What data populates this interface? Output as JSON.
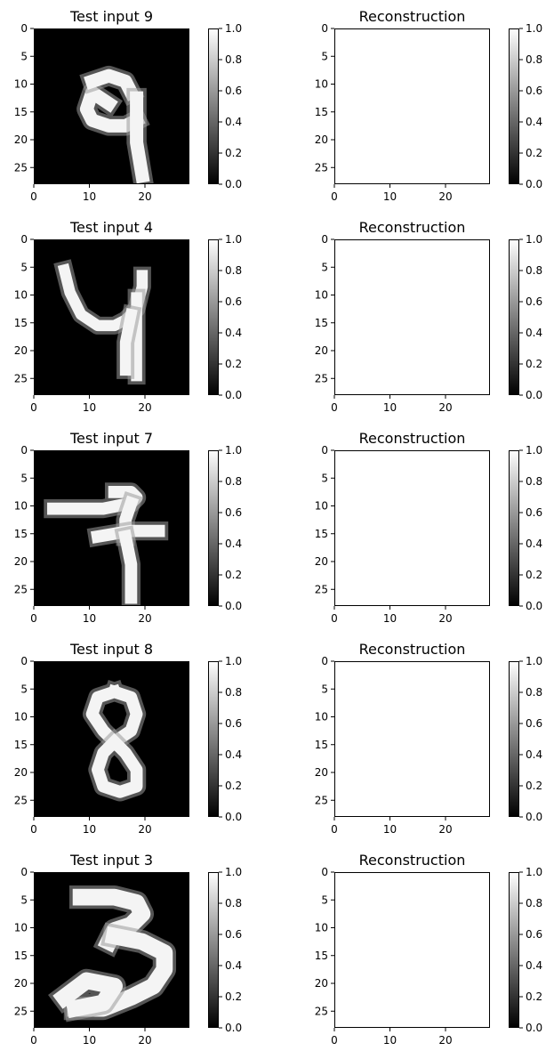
{
  "chart_data": [
    {
      "type": "heatmap",
      "title": "Test input 9",
      "colormap": "gray",
      "xlim": [
        0,
        28
      ],
      "ylim": [
        28,
        0
      ],
      "xticks": [
        "0",
        "10",
        "20"
      ],
      "yticks": [
        "0",
        "5",
        "10",
        "15",
        "20",
        "25"
      ],
      "colorbar": {
        "min": 0.0,
        "max": 1.0,
        "ticks": [
          "0.0",
          "0.2",
          "0.4",
          "0.6",
          "0.8",
          "1.0"
        ]
      },
      "strokes": [
        [
          [
            13,
            13
          ],
          [
            10,
            11
          ],
          [
            9,
            14
          ],
          [
            10,
            16
          ],
          [
            13,
            17
          ],
          [
            16,
            17
          ],
          [
            18,
            16
          ]
        ],
        [
          [
            17,
            11
          ],
          [
            16,
            9
          ],
          [
            13,
            8
          ],
          [
            10,
            9
          ]
        ],
        [
          [
            18,
            12
          ],
          [
            18,
            20
          ],
          [
            19,
            26
          ]
        ]
      ],
      "stroke_width": 2.4
    },
    {
      "type": "heatmap",
      "title": "Reconstruction",
      "colormap": "gray",
      "xlim": [
        0,
        28
      ],
      "ylim": [
        28,
        0
      ],
      "xticks": [
        "0",
        "10",
        "20"
      ],
      "yticks": [
        "0",
        "5",
        "10",
        "15",
        "20",
        "25"
      ],
      "colorbar": {
        "min": 0.0,
        "max": 1.0,
        "ticks": [
          "0.0",
          "0.2",
          "0.4",
          "0.6",
          "0.8",
          "1.0"
        ]
      },
      "fill_value": 1.0
    },
    {
      "type": "heatmap",
      "title": "Test input 4",
      "colormap": "gray",
      "xlim": [
        0,
        28
      ],
      "ylim": [
        28,
        0
      ],
      "xticks": [
        "0",
        "10",
        "20"
      ],
      "yticks": [
        "0",
        "5",
        "10",
        "15",
        "20",
        "25"
      ],
      "colorbar": {
        "min": 0.0,
        "max": 1.0,
        "ticks": [
          "0.0",
          "0.2",
          "0.4",
          "0.6",
          "0.8",
          "1.0"
        ]
      },
      "strokes": [
        [
          [
            5,
            5
          ],
          [
            6,
            9
          ],
          [
            8,
            13
          ],
          [
            11,
            15
          ],
          [
            14,
            15
          ],
          [
            16,
            14
          ],
          [
            18,
            12
          ],
          [
            19,
            8
          ],
          [
            19,
            6
          ]
        ],
        [
          [
            18,
            10
          ],
          [
            18,
            17
          ],
          [
            18,
            24
          ]
        ],
        [
          [
            17,
            13
          ],
          [
            16,
            18
          ],
          [
            16,
            23
          ]
        ]
      ],
      "stroke_width": 2.0
    },
    {
      "type": "heatmap",
      "title": "Reconstruction",
      "colormap": "gray",
      "xlim": [
        0,
        28
      ],
      "ylim": [
        28,
        0
      ],
      "xticks": [
        "0",
        "10",
        "20"
      ],
      "yticks": [
        "0",
        "5",
        "10",
        "15",
        "20",
        "25"
      ],
      "colorbar": {
        "min": 0.0,
        "max": 1.0,
        "ticks": [
          "0.0",
          "0.2",
          "0.4",
          "0.6",
          "0.8",
          "1.0"
        ]
      },
      "fill_value": 1.0
    },
    {
      "type": "heatmap",
      "title": "Test input 7",
      "colormap": "gray",
      "xlim": [
        0,
        28
      ],
      "ylim": [
        28,
        0
      ],
      "xticks": [
        "0",
        "10",
        "20"
      ],
      "yticks": [
        "0",
        "5",
        "10",
        "15",
        "20",
        "25"
      ],
      "colorbar": {
        "min": 0.0,
        "max": 1.0,
        "ticks": [
          "0.0",
          "0.2",
          "0.4",
          "0.6",
          "0.8",
          "1.0"
        ]
      },
      "strokes": [
        [
          [
            3,
            10
          ],
          [
            12,
            10
          ],
          [
            17,
            9
          ],
          [
            18,
            8
          ],
          [
            17,
            7
          ],
          [
            14,
            7
          ]
        ],
        [
          [
            17,
            9
          ],
          [
            16,
            12
          ],
          [
            16,
            15
          ]
        ],
        [
          [
            11,
            15
          ],
          [
            17,
            14
          ],
          [
            22,
            14
          ]
        ],
        [
          [
            16,
            15
          ],
          [
            17,
            20
          ],
          [
            17,
            26
          ]
        ]
      ],
      "stroke_width": 2.2
    },
    {
      "type": "heatmap",
      "title": "Reconstruction",
      "colormap": "gray",
      "xlim": [
        0,
        28
      ],
      "ylim": [
        28,
        0
      ],
      "xticks": [
        "0",
        "10",
        "20"
      ],
      "yticks": [
        "0",
        "5",
        "10",
        "15",
        "20",
        "25"
      ],
      "colorbar": {
        "min": 0.0,
        "max": 1.0,
        "ticks": [
          "0.0",
          "0.2",
          "0.4",
          "0.6",
          "0.8",
          "1.0"
        ]
      },
      "fill_value": 1.0
    },
    {
      "type": "heatmap",
      "title": "Test input 8",
      "colormap": "gray",
      "xlim": [
        0,
        28
      ],
      "ylim": [
        28,
        0
      ],
      "xticks": [
        "0",
        "10",
        "20"
      ],
      "yticks": [
        "0",
        "5",
        "10",
        "15",
        "20",
        "25"
      ],
      "colorbar": {
        "min": 0.0,
        "max": 1.0,
        "ticks": [
          "0.0",
          "0.2",
          "0.4",
          "0.6",
          "0.8",
          "1.0"
        ]
      },
      "strokes": [
        [
          [
            14,
            5
          ],
          [
            11,
            6
          ],
          [
            10,
            9
          ],
          [
            12,
            12
          ],
          [
            14,
            14
          ],
          [
            17,
            12
          ],
          [
            18,
            9
          ],
          [
            17,
            6
          ],
          [
            14,
            5
          ]
        ],
        [
          [
            14,
            14
          ],
          [
            12,
            16
          ],
          [
            11,
            19
          ],
          [
            12,
            22
          ],
          [
            15,
            23
          ],
          [
            18,
            22
          ],
          [
            18,
            19
          ],
          [
            16,
            16
          ],
          [
            14,
            14
          ]
        ]
      ],
      "stroke_width": 2.2
    },
    {
      "type": "heatmap",
      "title": "Reconstruction",
      "colormap": "gray",
      "xlim": [
        0,
        28
      ],
      "ylim": [
        28,
        0
      ],
      "xticks": [
        "0",
        "10",
        "20"
      ],
      "yticks": [
        "0",
        "5",
        "10",
        "15",
        "20",
        "25"
      ],
      "colorbar": {
        "min": 0.0,
        "max": 1.0,
        "ticks": [
          "0.0",
          "0.2",
          "0.4",
          "0.6",
          "0.8",
          "1.0"
        ]
      },
      "fill_value": 1.0
    },
    {
      "type": "heatmap",
      "title": "Test input 3",
      "colormap": "gray",
      "xlim": [
        0,
        28
      ],
      "ylim": [
        28,
        0
      ],
      "xticks": [
        "0",
        "10",
        "20"
      ],
      "yticks": [
        "0",
        "5",
        "10",
        "15",
        "20",
        "25"
      ],
      "colorbar": {
        "min": 0.0,
        "max": 1.0,
        "ticks": [
          "0.0",
          "0.2",
          "0.4",
          "0.6",
          "0.8",
          "1.0"
        ]
      },
      "strokes": [
        [
          [
            8,
            4
          ],
          [
            14,
            4
          ],
          [
            18,
            5
          ],
          [
            19,
            7
          ],
          [
            17,
            9
          ],
          [
            14,
            10
          ],
          [
            13,
            12
          ]
        ],
        [
          [
            14,
            11
          ],
          [
            19,
            12
          ],
          [
            23,
            14
          ],
          [
            23,
            17
          ],
          [
            21,
            20
          ],
          [
            17,
            22
          ],
          [
            12,
            24
          ],
          [
            7,
            24
          ]
        ],
        [
          [
            5,
            22
          ],
          [
            9,
            19
          ],
          [
            14,
            20
          ],
          [
            12,
            23
          ],
          [
            7,
            24
          ]
        ]
      ],
      "stroke_width": 3.0
    },
    {
      "type": "heatmap",
      "title": "Reconstruction",
      "colormap": "gray",
      "xlim": [
        0,
        28
      ],
      "ylim": [
        28,
        0
      ],
      "xticks": [
        "0",
        "10",
        "20"
      ],
      "yticks": [
        "0",
        "5",
        "10",
        "15",
        "20",
        "25"
      ],
      "colorbar": {
        "min": 0.0,
        "max": 1.0,
        "ticks": [
          "0.0",
          "0.2",
          "0.4",
          "0.6",
          "0.8",
          "1.0"
        ]
      },
      "fill_value": 1.0
    }
  ]
}
